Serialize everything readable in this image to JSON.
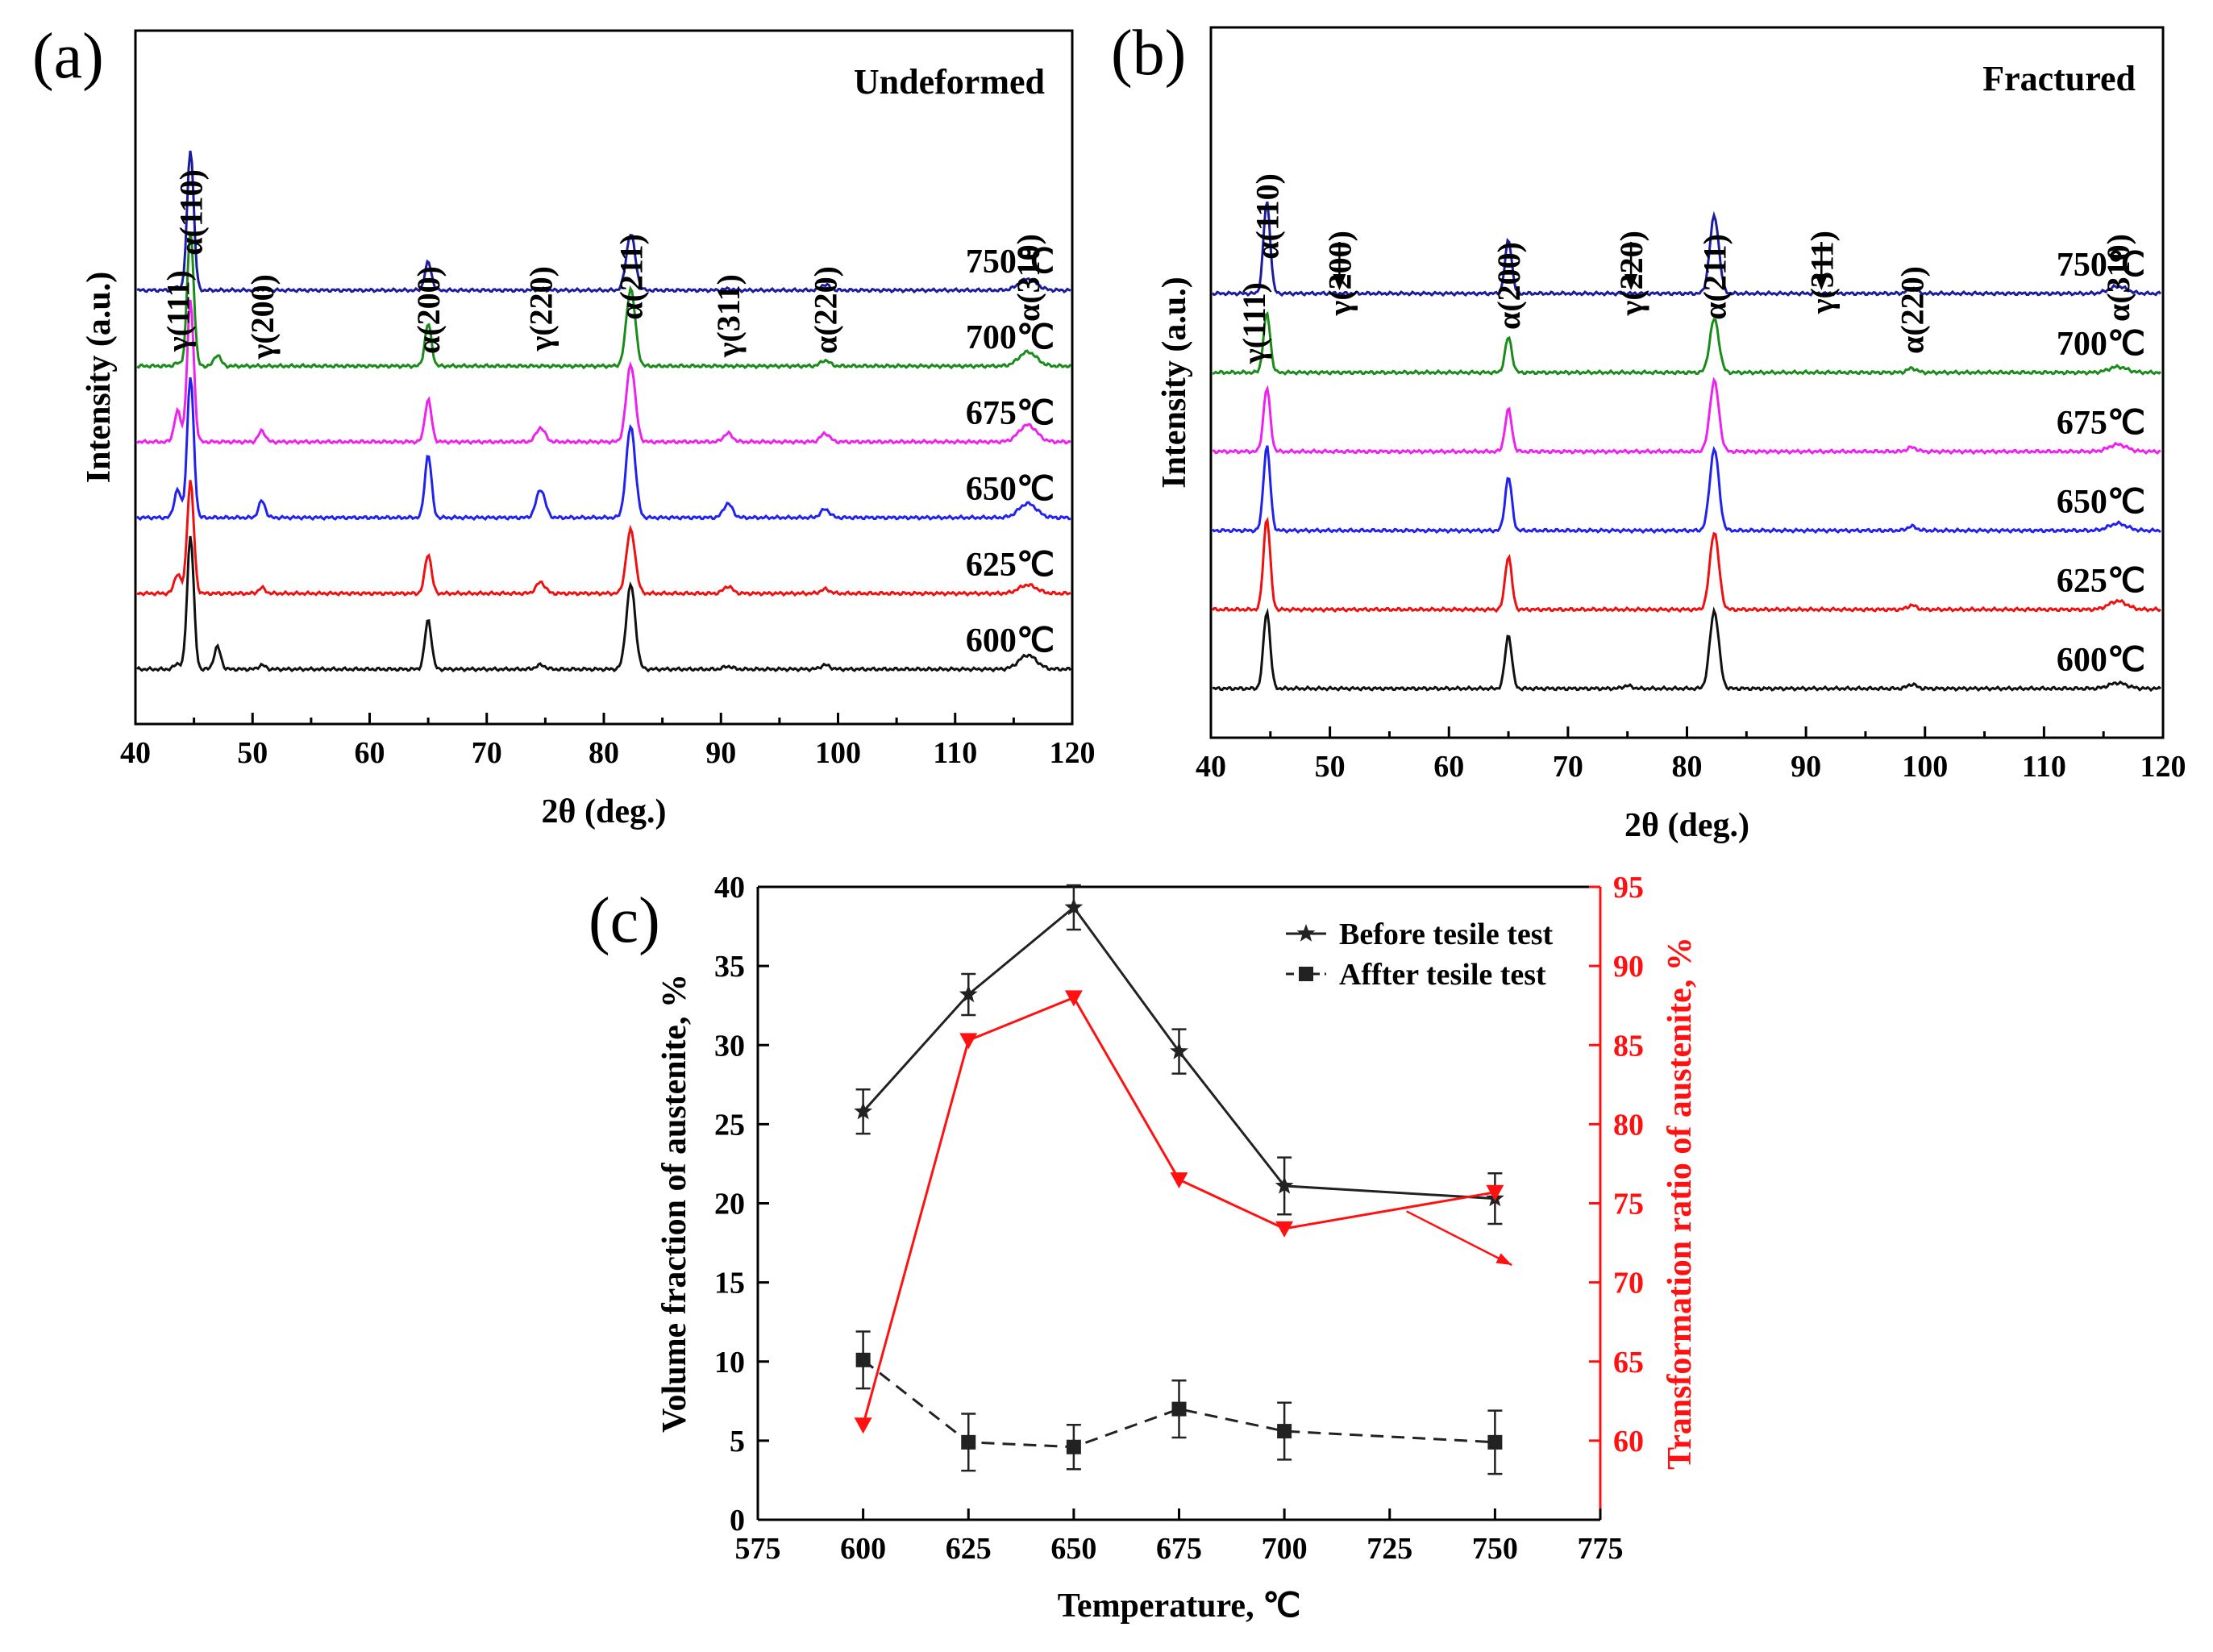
{
  "chart_data": [
    {
      "panel": "(a)",
      "type": "line",
      "condition": "Undeformed",
      "xlabel": "2θ (deg.)",
      "ylabel": "Intensity (a.u.)",
      "xlim": [
        40,
        120
      ],
      "xticks": [
        40,
        50,
        60,
        70,
        80,
        90,
        100,
        110,
        120
      ],
      "peak_labels": [
        {
          "text": "γ(111)",
          "x": 43.6
        },
        {
          "text": "α(110)",
          "x": 44.7
        },
        {
          "text": "γ(200)",
          "x": 50.8
        },
        {
          "text": "α(200)",
          "x": 65.0
        },
        {
          "text": "γ(220)",
          "x": 74.6
        },
        {
          "text": "α(211)",
          "x": 82.3
        },
        {
          "text": "γ(311)",
          "x": 90.6
        },
        {
          "text": "α(220)",
          "x": 98.9
        },
        {
          "text": "α(310)",
          "x": 116.2
        }
      ],
      "series": [
        {
          "name": "750℃",
          "color": "#1c1c9e",
          "peaks": [
            [
              43.6,
              0.02
            ],
            [
              44.7,
              1.0
            ],
            [
              50.8,
              0.01
            ],
            [
              65.0,
              0.2
            ],
            [
              74.6,
              0.01
            ],
            [
              82.3,
              0.4
            ],
            [
              90.6,
              0.01
            ],
            [
              98.9,
              0.04
            ],
            [
              116.2,
              0.08
            ]
          ]
        },
        {
          "name": "700℃",
          "color": "#1a8c1a",
          "peaks": [
            [
              43.6,
              0.02
            ],
            [
              44.7,
              0.95
            ],
            [
              47.0,
              0.08
            ],
            [
              65.0,
              0.3
            ],
            [
              82.3,
              0.55
            ],
            [
              98.9,
              0.04
            ],
            [
              116.2,
              0.1
            ]
          ]
        },
        {
          "name": "675℃",
          "color": "#ee22ee",
          "peaks": [
            [
              43.6,
              0.22
            ],
            [
              44.7,
              1.0
            ],
            [
              50.8,
              0.08
            ],
            [
              65.0,
              0.3
            ],
            [
              74.6,
              0.1
            ],
            [
              82.3,
              0.55
            ],
            [
              90.6,
              0.06
            ],
            [
              98.9,
              0.06
            ],
            [
              116.2,
              0.12
            ]
          ]
        },
        {
          "name": "650℃",
          "color": "#2222ee",
          "peaks": [
            [
              43.6,
              0.2
            ],
            [
              44.7,
              1.0
            ],
            [
              50.8,
              0.12
            ],
            [
              65.0,
              0.45
            ],
            [
              74.6,
              0.2
            ],
            [
              82.3,
              0.65
            ],
            [
              90.6,
              0.1
            ],
            [
              98.9,
              0.06
            ],
            [
              116.2,
              0.1
            ]
          ]
        },
        {
          "name": "625℃",
          "color": "#ee1111",
          "peaks": [
            [
              43.6,
              0.14
            ],
            [
              44.7,
              0.8
            ],
            [
              50.8,
              0.04
            ],
            [
              65.0,
              0.28
            ],
            [
              74.6,
              0.08
            ],
            [
              82.3,
              0.45
            ],
            [
              90.6,
              0.05
            ],
            [
              98.9,
              0.03
            ],
            [
              116.2,
              0.06
            ]
          ]
        },
        {
          "name": "600℃",
          "color": "#111111",
          "peaks": [
            [
              43.6,
              0.04
            ],
            [
              44.7,
              0.95
            ],
            [
              47.0,
              0.16
            ],
            [
              50.8,
              0.03
            ],
            [
              65.0,
              0.35
            ],
            [
              74.6,
              0.03
            ],
            [
              82.3,
              0.6
            ],
            [
              90.6,
              0.02
            ],
            [
              98.9,
              0.03
            ],
            [
              116.2,
              0.1
            ]
          ]
        }
      ]
    },
    {
      "panel": "(b)",
      "type": "line",
      "condition": "Fractured",
      "xlabel": "2θ (deg.)",
      "ylabel": "Intensity (a.u.)",
      "xlim": [
        40,
        120
      ],
      "xticks": [
        40,
        50,
        60,
        70,
        80,
        90,
        100,
        110,
        120
      ],
      "peak_labels": [
        {
          "text": "γ(111)",
          "x": 43.6
        },
        {
          "text": "α(110)",
          "x": 44.7
        },
        {
          "text": "γ(200)",
          "x": 50.8,
          "arrow": true
        },
        {
          "text": "α(200)",
          "x": 65.0
        },
        {
          "text": "γ(220)",
          "x": 75.3,
          "arrow": true
        },
        {
          "text": "α(211)",
          "x": 82.3
        },
        {
          "text": "γ(311)",
          "x": 91.3,
          "arrow": true
        },
        {
          "text": "α(220)",
          "x": 98.9
        },
        {
          "text": "α(310)",
          "x": 116.2
        }
      ],
      "series": [
        {
          "name": "750℃",
          "color": "#1c1c9e",
          "peaks": [
            [
              44.7,
              0.65
            ],
            [
              65.0,
              0.38
            ],
            [
              82.3,
              0.55
            ],
            [
              98.9,
              0.04
            ],
            [
              116.2,
              0.05
            ]
          ]
        },
        {
          "name": "700℃",
          "color": "#1a8c1a",
          "peaks": [
            [
              44.7,
              0.42
            ],
            [
              65.0,
              0.25
            ],
            [
              82.3,
              0.38
            ],
            [
              98.9,
              0.03
            ],
            [
              116.2,
              0.04
            ]
          ]
        },
        {
          "name": "675℃",
          "color": "#ee22ee",
          "peaks": [
            [
              44.7,
              0.45
            ],
            [
              65.0,
              0.3
            ],
            [
              82.3,
              0.5
            ],
            [
              98.9,
              0.03
            ],
            [
              116.2,
              0.05
            ]
          ]
        },
        {
          "name": "650℃",
          "color": "#2222ee",
          "peaks": [
            [
              44.7,
              0.6
            ],
            [
              65.0,
              0.38
            ],
            [
              82.3,
              0.58
            ],
            [
              98.9,
              0.03
            ],
            [
              116.2,
              0.05
            ]
          ]
        },
        {
          "name": "625℃",
          "color": "#ee1111",
          "peaks": [
            [
              44.7,
              0.65
            ],
            [
              65.0,
              0.38
            ],
            [
              82.3,
              0.55
            ],
            [
              98.9,
              0.03
            ],
            [
              116.2,
              0.06
            ]
          ]
        },
        {
          "name": "600℃",
          "color": "#111111",
          "peaks": [
            [
              44.7,
              0.55
            ],
            [
              65.0,
              0.38
            ],
            [
              75.0,
              0.02
            ],
            [
              82.3,
              0.55
            ],
            [
              98.9,
              0.03
            ],
            [
              116.2,
              0.04
            ]
          ]
        }
      ]
    },
    {
      "panel": "(c)",
      "type": "line",
      "xlabel": "Temperature, ℃",
      "ylabel": "Volume fraction of austenite, %",
      "y2label": "Transformation ratio of austenite, %",
      "xlim": [
        575,
        775
      ],
      "xticks": [
        575,
        600,
        625,
        650,
        675,
        700,
        725,
        750,
        775
      ],
      "ylim": [
        0,
        40
      ],
      "yticks": [
        0,
        5,
        10,
        15,
        20,
        25,
        30,
        35,
        40
      ],
      "y2lim": [
        55,
        95
      ],
      "y2ticks": [
        60,
        65,
        70,
        75,
        80,
        85,
        90,
        95
      ],
      "legend_position": "top-right",
      "series": [
        {
          "name": "Before tesile test",
          "axis": "left",
          "marker": "star",
          "dash": "solid",
          "color": "#222222",
          "x": [
            600,
            625,
            650,
            675,
            700,
            750
          ],
          "y": [
            25.8,
            33.2,
            38.7,
            29.6,
            21.1,
            20.3
          ],
          "err": [
            1.4,
            1.3,
            1.4,
            1.4,
            1.8,
            1.6
          ]
        },
        {
          "name": "Affter tesile test",
          "axis": "left",
          "marker": "square",
          "dash": "dashed",
          "color": "#222222",
          "x": [
            600,
            625,
            650,
            675,
            700,
            750
          ],
          "y": [
            10.1,
            4.9,
            4.6,
            7.0,
            5.6,
            4.9
          ],
          "err": [
            1.8,
            1.8,
            1.4,
            1.8,
            1.8,
            2.0
          ]
        },
        {
          "name": "Transformation ratio",
          "axis": "right",
          "marker": "triangle-down",
          "dash": "solid",
          "color": "#ff1111",
          "x": [
            600,
            625,
            650,
            675,
            700,
            750
          ],
          "y": [
            61.0,
            85.3,
            88.0,
            76.5,
            73.4,
            75.7
          ]
        }
      ],
      "arrow": {
        "from": [
          729,
          74.5
        ],
        "to": [
          754,
          71.1
        ],
        "color": "#ff1111"
      }
    }
  ]
}
